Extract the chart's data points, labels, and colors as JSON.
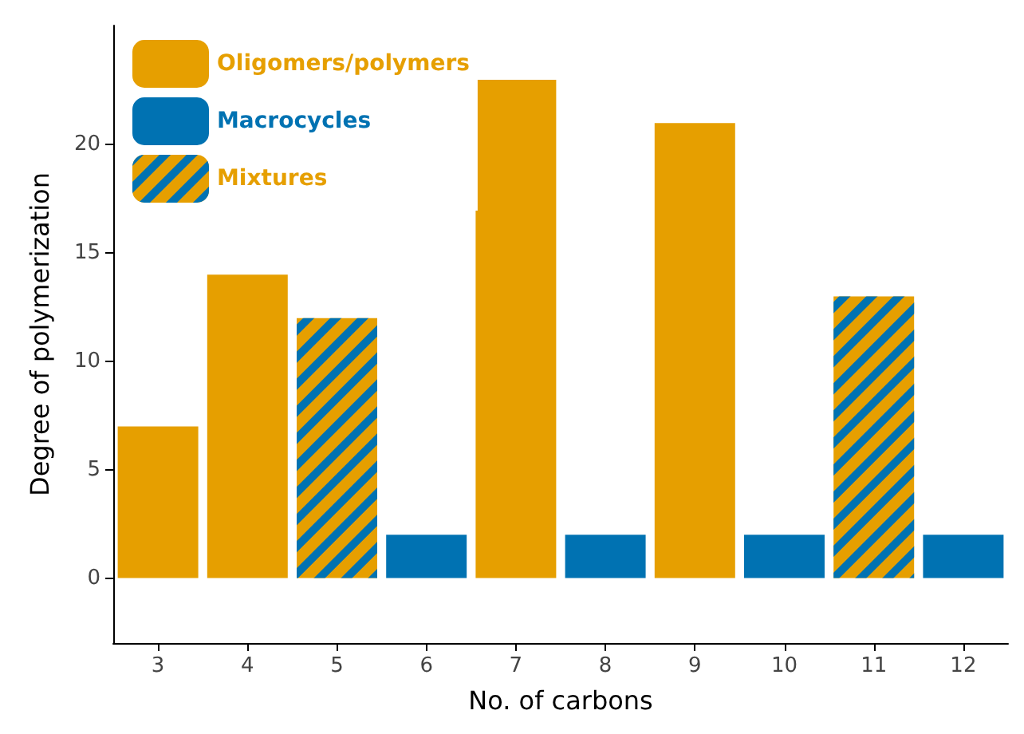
{
  "chart_data": {
    "type": "bar",
    "xlabel": "No. of carbons",
    "ylabel": "Degree of polymerization",
    "categories": [
      "3",
      "4",
      "5",
      "6",
      "7",
      "8",
      "9",
      "10",
      "11",
      "12"
    ],
    "series": [
      {
        "name": "Oligomers/polymers",
        "color": "#e69f00",
        "values": [
          7,
          14,
          null,
          null,
          23,
          null,
          21,
          null,
          null,
          null
        ]
      },
      {
        "name": "Macrocycles",
        "color": "#0072b2",
        "values": [
          null,
          null,
          null,
          2,
          null,
          2,
          null,
          2,
          null,
          2
        ]
      },
      {
        "name": "Mixtures",
        "color": "#e69f00",
        "values": [
          null,
          null,
          12,
          null,
          null,
          null,
          null,
          null,
          13,
          null
        ]
      }
    ],
    "ylim": [
      -3,
      25.5
    ],
    "yticks": [
      0,
      5,
      10,
      15,
      20
    ],
    "grid": false,
    "legend": "top left"
  }
}
